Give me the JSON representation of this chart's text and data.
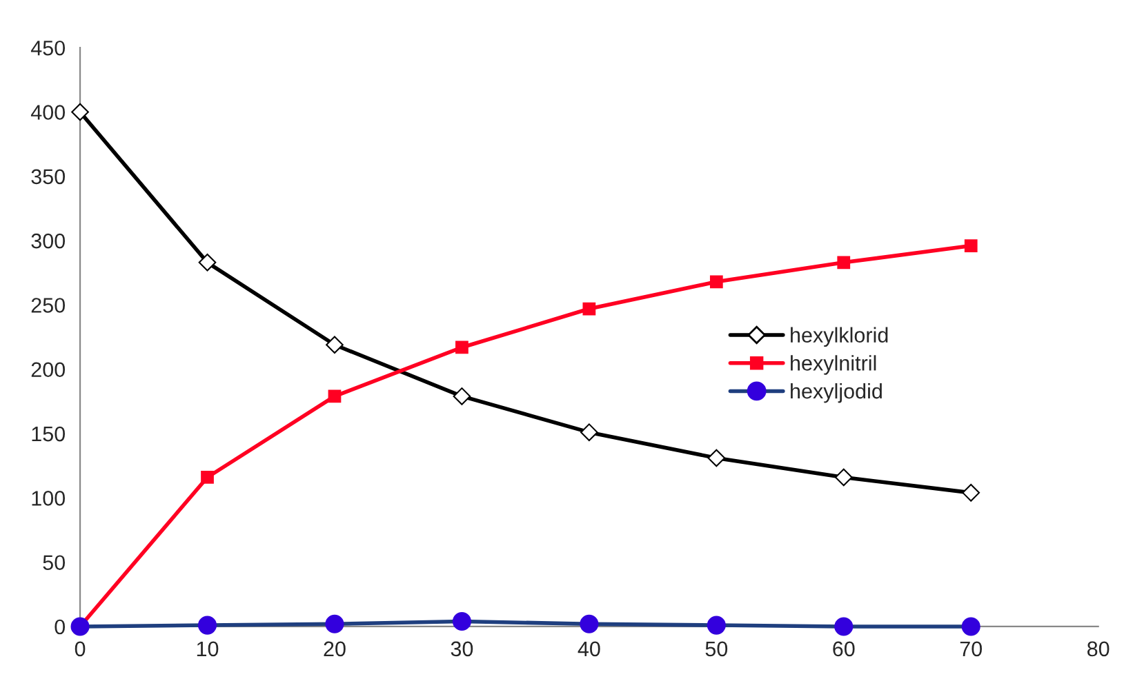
{
  "chart_data": {
    "type": "line",
    "x": [
      0,
      10,
      20,
      30,
      40,
      50,
      60,
      70
    ],
    "series": [
      {
        "name": "hexylklorid",
        "color": "#000000",
        "marker": "diamond",
        "values": [
          400,
          283,
          219,
          179,
          151,
          131,
          116,
          104
        ]
      },
      {
        "name": "hexylnitril",
        "color": "#ff0022",
        "marker": "square",
        "values": [
          0,
          116,
          179,
          217,
          247,
          268,
          283,
          296
        ]
      },
      {
        "name": "hexyljodid",
        "color": "#1f3f7f",
        "marker": "circle",
        "values": [
          0,
          1,
          2,
          4,
          2,
          1,
          0,
          0
        ]
      }
    ],
    "xlim": [
      0,
      80
    ],
    "xticks": [
      0,
      10,
      20,
      30,
      40,
      50,
      60,
      70,
      80
    ],
    "ylim": [
      0,
      450
    ],
    "yticks": [
      0,
      50,
      100,
      150,
      200,
      250,
      300,
      350,
      400,
      450
    ],
    "grid": false,
    "legend": "right",
    "line_style": "solid"
  }
}
